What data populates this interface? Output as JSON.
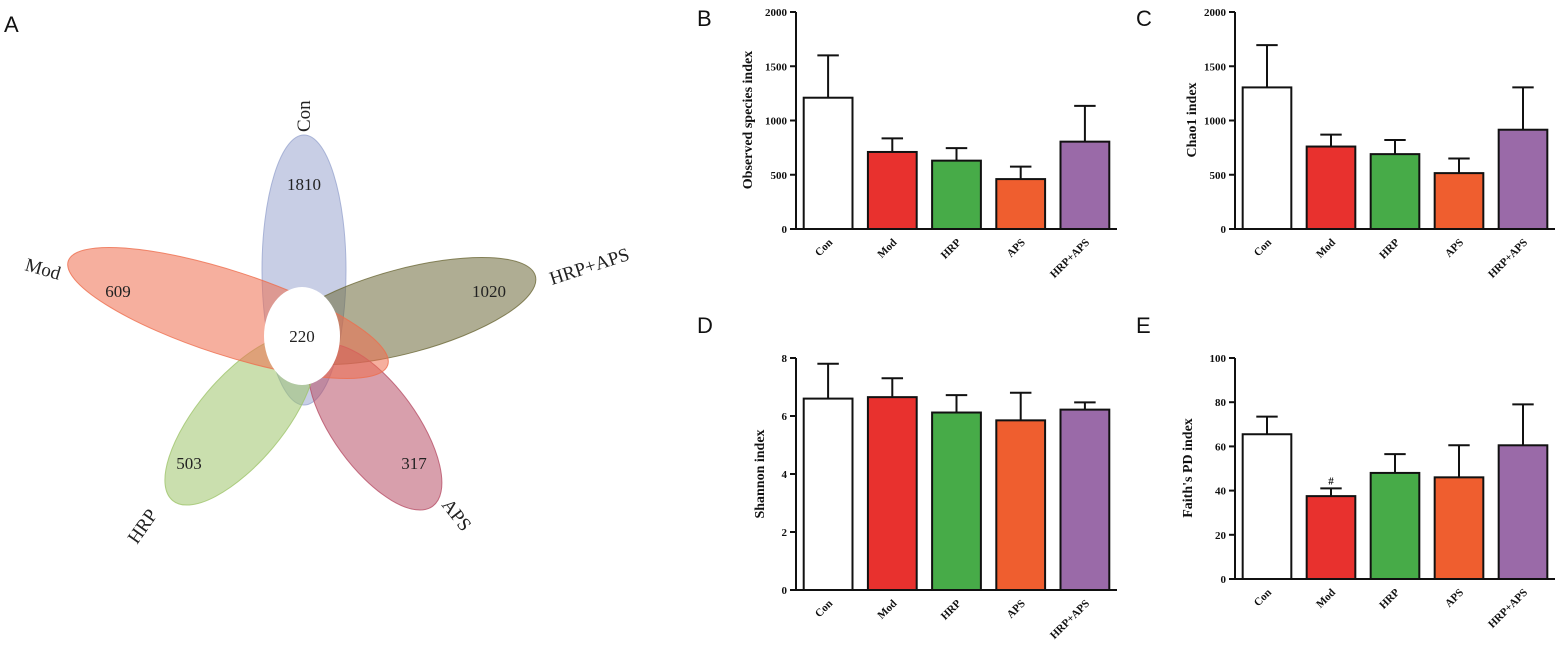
{
  "chart_data": [
    {
      "panel": "A",
      "type": "venn",
      "sets": [
        {
          "name": "Con",
          "unique": 1810,
          "color": "#9aa6cf"
        },
        {
          "name": "HRP+APS",
          "unique": 1020,
          "color": "#6e6a3a"
        },
        {
          "name": "APS",
          "unique": 317,
          "color": "#b85068"
        },
        {
          "name": "HRP",
          "unique": 503,
          "color": "#9fc46c"
        },
        {
          "name": "Mod",
          "unique": 609,
          "color": "#ee6e4e"
        }
      ],
      "core": 220
    },
    {
      "panel": "B",
      "type": "bar",
      "ylabel": "Observed species index",
      "categories": [
        "Con",
        "Mod",
        "HRP",
        "APS",
        "HRP+APS"
      ],
      "values": [
        1210,
        710,
        630,
        460,
        805
      ],
      "errors": [
        390,
        125,
        115,
        115,
        330
      ],
      "ylim": [
        0,
        2000
      ],
      "yticks": [
        0,
        500,
        1000,
        1500,
        2000
      ],
      "colors": [
        "#ffffff",
        "#e8312e",
        "#47ab48",
        "#ef5e2f",
        "#9a6aa8"
      ],
      "annotations": [
        "",
        "",
        "",
        "",
        ""
      ]
    },
    {
      "panel": "C",
      "type": "bar",
      "ylabel": "Chao1 index",
      "categories": [
        "Con",
        "Mod",
        "HRP",
        "APS",
        "HRP+APS"
      ],
      "values": [
        1305,
        760,
        690,
        515,
        915
      ],
      "errors": [
        390,
        110,
        130,
        135,
        390
      ],
      "ylim": [
        0,
        2000
      ],
      "yticks": [
        0,
        500,
        1000,
        1500,
        2000
      ],
      "colors": [
        "#ffffff",
        "#e8312e",
        "#47ab48",
        "#ef5e2f",
        "#9a6aa8"
      ],
      "annotations": [
        "",
        "",
        "",
        "",
        ""
      ]
    },
    {
      "panel": "D",
      "type": "bar",
      "ylabel": "Shannon index",
      "categories": [
        "Con",
        "Mod",
        "HRP",
        "APS",
        "HRP+APS"
      ],
      "values": [
        6.6,
        6.65,
        6.12,
        5.85,
        6.22
      ],
      "errors": [
        1.2,
        0.65,
        0.6,
        0.95,
        0.25
      ],
      "ylim": [
        0,
        8
      ],
      "yticks": [
        0,
        2,
        4,
        6,
        8
      ],
      "colors": [
        "#ffffff",
        "#e8312e",
        "#47ab48",
        "#ef5e2f",
        "#9a6aa8"
      ],
      "annotations": [
        "",
        "",
        "",
        "",
        ""
      ]
    },
    {
      "panel": "E",
      "type": "bar",
      "ylabel": "Faith's PD index",
      "categories": [
        "Con",
        "Mod",
        "HRP",
        "APS",
        "HRP+APS"
      ],
      "values": [
        65.5,
        37.5,
        48,
        46,
        60.5
      ],
      "errors": [
        8,
        3.5,
        8.5,
        14.5,
        18.5
      ],
      "ylim": [
        0,
        100
      ],
      "yticks": [
        0,
        20,
        40,
        60,
        80,
        100
      ],
      "colors": [
        "#ffffff",
        "#e8312e",
        "#47ab48",
        "#ef5e2f",
        "#9a6aa8"
      ],
      "annotations": [
        "",
        "#",
        "",
        "",
        ""
      ]
    }
  ]
}
